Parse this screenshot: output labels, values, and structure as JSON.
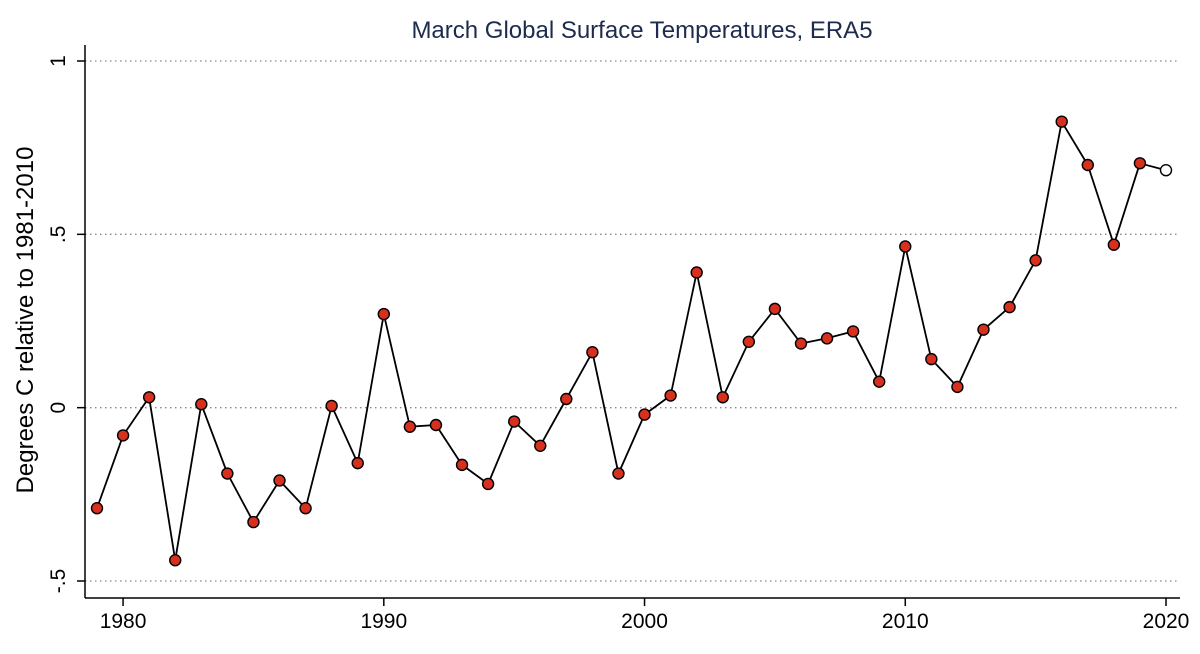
{
  "chart_data": {
    "type": "line",
    "title": "March Global Surface Temperatures, ERA5",
    "xlabel": "",
    "ylabel": "Degrees C relative to 1981-2010",
    "xlim": [
      1979,
      2020
    ],
    "ylim": [
      -0.5,
      1
    ],
    "x_ticks": [
      1980,
      1990,
      2000,
      2010,
      2020
    ],
    "x_tick_labels": [
      "1980",
      "1990",
      "2000",
      "2010",
      "2020"
    ],
    "y_ticks": [
      -0.5,
      0,
      0.5,
      1
    ],
    "y_tick_labels": [
      "-.5",
      "0",
      ".5",
      "1"
    ],
    "grid": "horizontal dotted",
    "colors": {
      "marker_fill": "#d7301f",
      "marker_outline": "#000000",
      "last_marker_fill": "#ffffff",
      "line": "#000000",
      "title": "#1d2b4f",
      "grid": "#888888"
    },
    "series": [
      {
        "x": [
          1979,
          1980,
          1981,
          1982,
          1983,
          1984,
          1985,
          1986,
          1987,
          1988,
          1989,
          1990,
          1991,
          1992,
          1993,
          1994,
          1995,
          1996,
          1997,
          1998,
          1999,
          2000,
          2001,
          2002,
          2003,
          2004,
          2005,
          2006,
          2007,
          2008,
          2009,
          2010,
          2011,
          2012,
          2013,
          2014,
          2015,
          2016,
          2017,
          2018,
          2019,
          2020
        ],
        "values": [
          -0.29,
          -0.08,
          0.03,
          -0.44,
          0.01,
          -0.19,
          -0.33,
          -0.21,
          -0.29,
          0.005,
          -0.16,
          0.27,
          -0.055,
          -0.05,
          -0.165,
          -0.22,
          -0.04,
          -0.11,
          0.025,
          0.16,
          -0.19,
          -0.02,
          0.035,
          0.39,
          0.03,
          0.19,
          0.285,
          0.185,
          0.2,
          0.22,
          0.075,
          0.465,
          0.14,
          0.06,
          0.225,
          0.29,
          0.425,
          0.825,
          0.7,
          0.47,
          0.705,
          0.685
        ]
      }
    ]
  }
}
